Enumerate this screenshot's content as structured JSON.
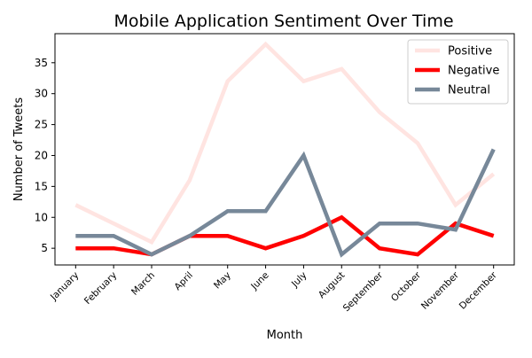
{
  "chart_data": {
    "type": "line",
    "title": "Mobile Application Sentiment Over Time",
    "xlabel": "Month",
    "ylabel": "Number of Tweets",
    "categories": [
      "January",
      "February",
      "March",
      "April",
      "May",
      "June",
      "July",
      "August",
      "September",
      "October",
      "November",
      "December"
    ],
    "ylim": [
      2.3,
      39.7
    ],
    "yticks": [
      5,
      10,
      15,
      20,
      25,
      30,
      35
    ],
    "grid": false,
    "legend_position": "top-right",
    "series": [
      {
        "name": "Positive",
        "color": "#ffe4e1",
        "values": [
          12,
          9,
          6,
          16,
          32,
          38,
          32,
          34,
          27,
          22,
          12,
          17
        ]
      },
      {
        "name": "Negative",
        "color": "#ff0000",
        "values": [
          5,
          5,
          4,
          7,
          7,
          5,
          7,
          10,
          5,
          4,
          9,
          7
        ]
      },
      {
        "name": "Neutral",
        "color": "#778899",
        "values": [
          7,
          7,
          4,
          7,
          11,
          11,
          20,
          4,
          9,
          9,
          8,
          21
        ]
      }
    ]
  }
}
